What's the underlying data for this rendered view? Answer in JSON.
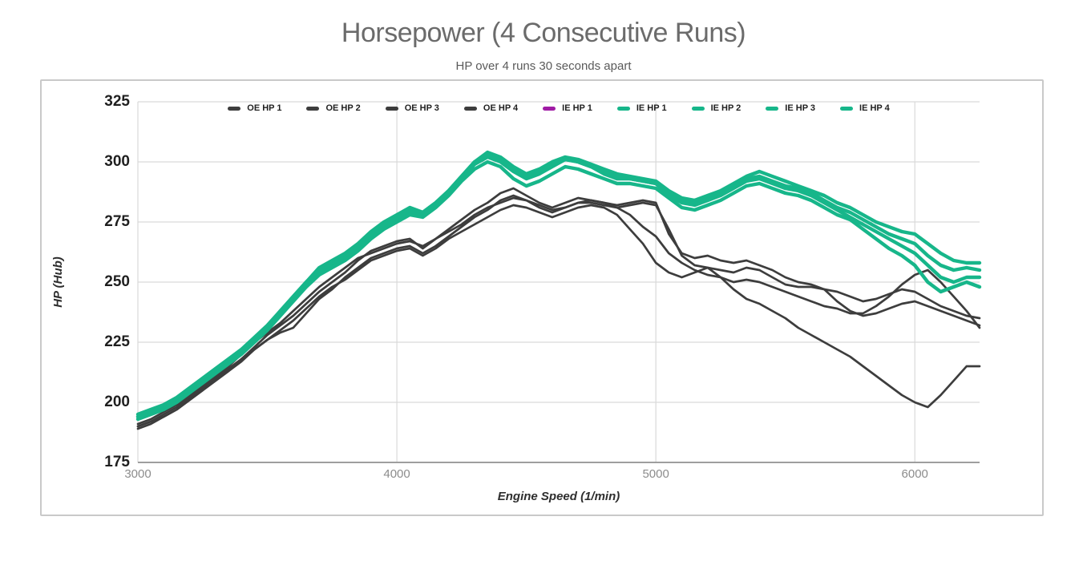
{
  "title": "Horsepower (4 Consecutive Runs)",
  "subtitle": "HP over 4 runs 30 seconds apart",
  "colors": {
    "oe_line": "#3d3d3d",
    "ie_line": "#17b68a",
    "ie_alt_swatch": "#a01ba5",
    "gridline": "#d9d9d9",
    "axis_line": "#9e9e9e",
    "border": "#c9c9c9"
  },
  "legend": {
    "items": [
      {
        "label": "OE HP 1",
        "color": "#3d3d3d"
      },
      {
        "label": "OE HP 2",
        "color": "#3d3d3d"
      },
      {
        "label": "OE HP 3",
        "color": "#3d3d3d"
      },
      {
        "label": "OE HP 4",
        "color": "#3d3d3d"
      },
      {
        "label": "IE HP 1",
        "color": "#a01ba5"
      },
      {
        "label": "IE HP 1",
        "color": "#17b68a"
      },
      {
        "label": "IE HP 2",
        "color": "#17b68a"
      },
      {
        "label": "IE HP 3",
        "color": "#17b68a"
      },
      {
        "label": "IE HP 4",
        "color": "#17b68a"
      }
    ]
  },
  "axes": {
    "x": {
      "label": "Engine Speed (1/min)",
      "ticks": [
        3000,
        4000,
        5000,
        6000
      ],
      "range": [
        3000,
        6250
      ]
    },
    "y": {
      "label": "HP (Hub)",
      "ticks": [
        325,
        300,
        275,
        250,
        225,
        200,
        175
      ],
      "range": [
        175,
        325
      ]
    }
  },
  "chart_data": {
    "type": "line",
    "title": "Horsepower (4 Consecutive Runs)",
    "subtitle": "HP over 4 runs 30 seconds apart",
    "xlabel": "Engine Speed (1/min)",
    "ylabel": "HP (Hub)",
    "xlim": [
      3000,
      6250
    ],
    "ylim": [
      175,
      325
    ],
    "grid": true,
    "legend_position": "top-center",
    "x": [
      3000,
      3050,
      3100,
      3150,
      3200,
      3250,
      3300,
      3350,
      3400,
      3450,
      3500,
      3550,
      3600,
      3650,
      3700,
      3750,
      3800,
      3850,
      3900,
      3950,
      4000,
      4050,
      4100,
      4150,
      4200,
      4250,
      4300,
      4350,
      4400,
      4450,
      4500,
      4550,
      4600,
      4650,
      4700,
      4750,
      4800,
      4850,
      4900,
      4950,
      5000,
      5050,
      5100,
      5150,
      5200,
      5250,
      5300,
      5350,
      5400,
      5450,
      5500,
      5550,
      5600,
      5650,
      5700,
      5750,
      5800,
      5850,
      5900,
      5950,
      6000,
      6050,
      6100,
      6150,
      6200,
      6250
    ],
    "series": [
      {
        "name": "OE HP 1",
        "color": "#3d3d3d",
        "values": [
          190,
          192,
          195,
          198,
          202,
          206,
          210,
          214,
          218,
          223,
          228,
          232,
          236,
          241,
          246,
          250,
          254,
          259,
          263,
          265,
          267,
          268,
          264,
          268,
          272,
          276,
          280,
          283,
          287,
          289,
          286,
          283,
          281,
          283,
          285,
          284,
          283,
          282,
          283,
          284,
          283,
          270,
          262,
          260,
          261,
          259,
          258,
          259,
          257,
          255,
          252,
          250,
          249,
          247,
          246,
          244,
          242,
          243,
          245,
          247,
          246,
          243,
          240,
          238,
          236,
          235
        ]
      },
      {
        "name": "OE HP 2",
        "color": "#3d3d3d",
        "values": [
          189,
          191,
          194,
          197,
          201,
          205,
          209,
          213,
          217,
          222,
          226,
          229,
          231,
          237,
          243,
          247,
          252,
          256,
          260,
          262,
          264,
          265,
          262,
          265,
          269,
          273,
          277,
          280,
          284,
          286,
          284,
          281,
          279,
          281,
          283,
          283,
          282,
          281,
          282,
          283,
          282,
          272,
          261,
          257,
          256,
          255,
          254,
          256,
          255,
          252,
          249,
          248,
          248,
          247,
          242,
          238,
          236,
          237,
          239,
          241,
          242,
          240,
          238,
          236,
          234,
          232
        ]
      },
      {
        "name": "OE HP 3",
        "color": "#3d3d3d",
        "values": [
          191,
          193,
          196,
          199,
          203,
          207,
          211,
          215,
          220,
          225,
          229,
          233,
          238,
          243,
          248,
          252,
          256,
          260,
          262,
          264,
          266,
          267,
          265,
          268,
          271,
          274,
          278,
          281,
          283,
          285,
          284,
          282,
          280,
          281,
          283,
          284,
          283,
          281,
          278,
          273,
          269,
          262,
          258,
          255,
          253,
          252,
          250,
          251,
          250,
          248,
          246,
          244,
          242,
          240,
          239,
          237,
          237,
          240,
          244,
          249,
          253,
          255,
          250,
          244,
          238,
          231
        ]
      },
      {
        "name": "OE HP 4",
        "color": "#3d3d3d",
        "values": [
          190,
          192,
          194,
          197,
          201,
          205,
          209,
          213,
          218,
          222,
          226,
          230,
          234,
          239,
          244,
          248,
          251,
          255,
          259,
          261,
          263,
          264,
          261,
          264,
          268,
          271,
          274,
          277,
          280,
          282,
          281,
          279,
          277,
          279,
          281,
          282,
          281,
          278,
          272,
          266,
          258,
          254,
          252,
          254,
          256,
          252,
          247,
          243,
          241,
          238,
          235,
          231,
          228,
          225,
          222,
          219,
          215,
          211,
          207,
          203,
          200,
          198,
          203,
          209,
          215,
          215
        ]
      },
      {
        "name": "IE HP 1",
        "color": "#17b68a",
        "values": [
          194,
          196,
          198,
          201,
          205,
          209,
          213,
          217,
          221,
          226,
          231,
          237,
          243,
          249,
          254,
          257,
          260,
          264,
          269,
          273,
          276,
          279,
          278,
          282,
          287,
          293,
          299,
          302,
          300,
          296,
          293,
          295,
          298,
          301,
          300,
          298,
          295,
          293,
          293,
          292,
          291,
          287,
          284,
          283,
          285,
          287,
          290,
          293,
          294,
          292,
          290,
          289,
          287,
          284,
          281,
          279,
          276,
          273,
          270,
          268,
          266,
          261,
          257,
          255,
          256,
          255
        ]
      },
      {
        "name": "IE HP 2",
        "color": "#17b68a",
        "values": [
          195,
          197,
          199,
          202,
          206,
          210,
          214,
          218,
          222,
          227,
          232,
          238,
          244,
          250,
          255,
          258,
          261,
          265,
          270,
          274,
          277,
          280,
          279,
          283,
          288,
          294,
          300,
          304,
          302,
          298,
          295,
          297,
          300,
          302,
          301,
          299,
          297,
          295,
          294,
          293,
          292,
          288,
          285,
          284,
          286,
          288,
          291,
          294,
          296,
          294,
          292,
          290,
          288,
          286,
          283,
          281,
          278,
          275,
          273,
          271,
          270,
          266,
          262,
          259,
          258,
          258
        ]
      },
      {
        "name": "IE HP 3",
        "color": "#17b68a",
        "values": [
          193,
          195,
          197,
          200,
          204,
          208,
          212,
          216,
          220,
          225,
          230,
          236,
          242,
          248,
          253,
          256,
          259,
          263,
          268,
          272,
          275,
          278,
          277,
          281,
          286,
          292,
          297,
          300,
          298,
          293,
          290,
          292,
          295,
          298,
          297,
          295,
          293,
          291,
          291,
          290,
          289,
          285,
          281,
          280,
          282,
          284,
          287,
          290,
          291,
          289,
          287,
          286,
          284,
          281,
          278,
          276,
          272,
          268,
          264,
          261,
          257,
          250,
          246,
          248,
          250,
          248
        ]
      },
      {
        "name": "IE HP 4",
        "color": "#17b68a",
        "values": [
          194,
          196,
          199,
          202,
          206,
          210,
          214,
          218,
          222,
          226,
          231,
          238,
          244,
          250,
          256,
          259,
          262,
          266,
          271,
          275,
          278,
          281,
          279,
          283,
          288,
          294,
          300,
          303,
          301,
          297,
          294,
          296,
          299,
          301,
          300,
          298,
          296,
          294,
          293,
          292,
          291,
          286,
          283,
          282,
          284,
          286,
          289,
          292,
          293,
          291,
          289,
          288,
          286,
          283,
          280,
          277,
          274,
          271,
          268,
          265,
          262,
          257,
          252,
          250,
          252,
          252
        ]
      }
    ]
  }
}
